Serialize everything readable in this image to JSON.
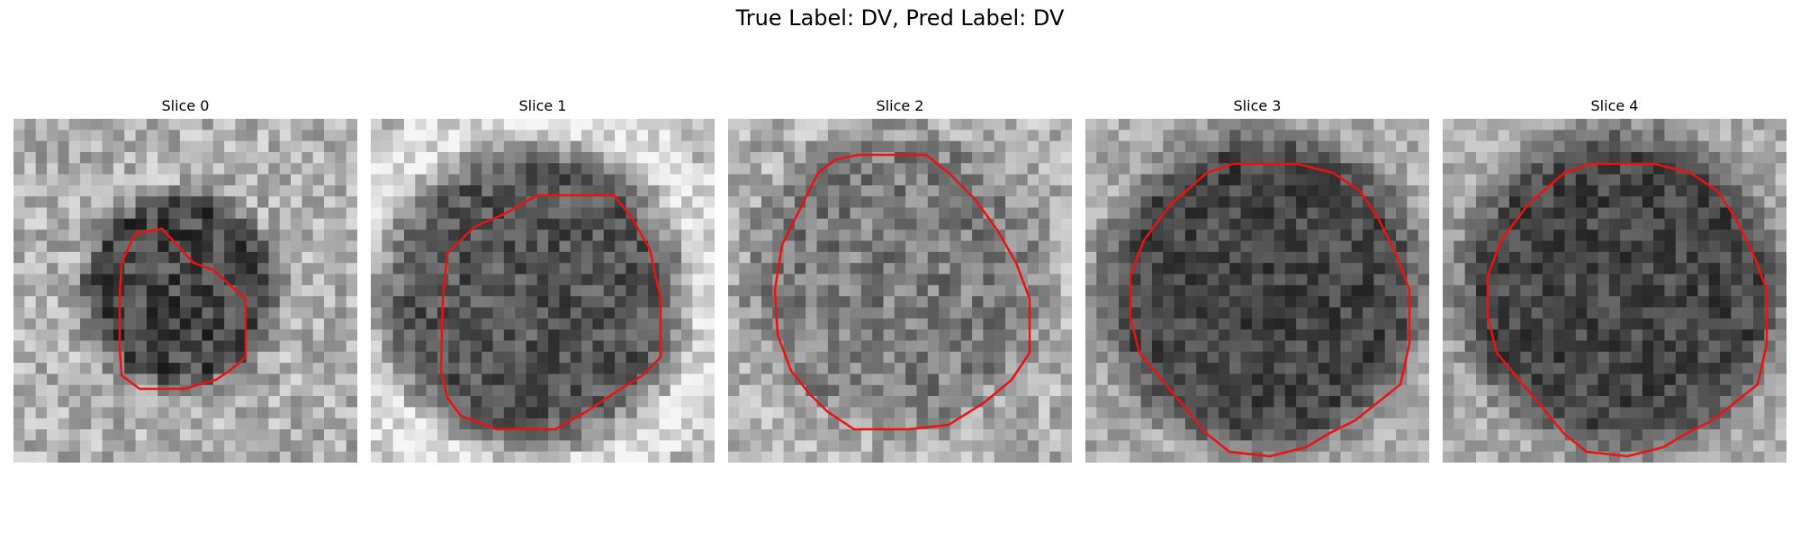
{
  "figure": {
    "title": "True Label: DV, Pred Label: DV"
  },
  "colors": {
    "contour": "#ee1111"
  },
  "panels": [
    {
      "title": "Slice 0",
      "image": "noisy grayscale microscopy crop with small dark blob, red segmentation contour"
    },
    {
      "title": "Slice 1",
      "image": "noisy grayscale microscopy crop with dark round vesicle, red segmentation contour"
    },
    {
      "title": "Slice 2",
      "image": "noisy grayscale microscopy crop with medium-gray round vesicle, red segmentation contour"
    },
    {
      "title": "Slice 3",
      "image": "noisy grayscale microscopy crop with large dark round vesicle, red segmentation contour"
    },
    {
      "title": "Slice 4",
      "image": "noisy grayscale microscopy crop with large dark round vesicle, red segmentation contour"
    }
  ]
}
